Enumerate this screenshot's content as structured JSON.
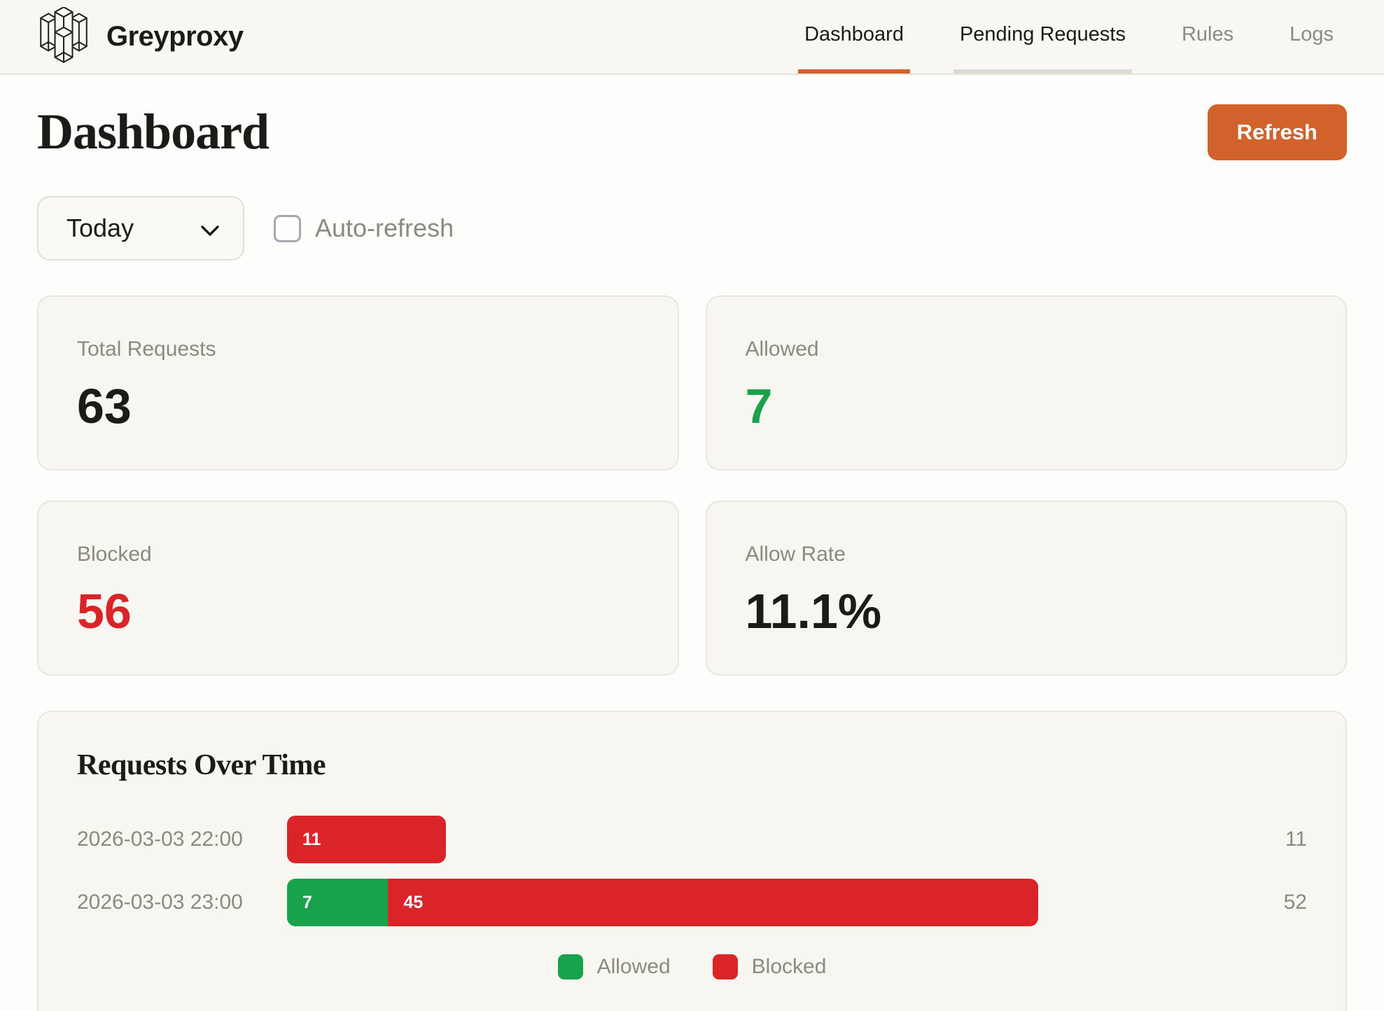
{
  "brand": {
    "name": "Greyproxy"
  },
  "nav": {
    "items": [
      {
        "label": "Dashboard",
        "state": "active"
      },
      {
        "label": "Pending Requests",
        "state": "highlighted"
      },
      {
        "label": "Rules",
        "state": "default"
      },
      {
        "label": "Logs",
        "state": "default"
      }
    ]
  },
  "page": {
    "title": "Dashboard"
  },
  "toolbar": {
    "refresh_label": "Refresh",
    "range_selected": "Today",
    "auto_refresh_label": "Auto-refresh",
    "auto_refresh_checked": false
  },
  "stats": [
    {
      "label": "Total Requests",
      "value": "63",
      "color": "#1c1b17"
    },
    {
      "label": "Allowed",
      "value": "7",
      "color": "#18a24b"
    },
    {
      "label": "Blocked",
      "value": "56",
      "color": "#da2428"
    },
    {
      "label": "Allow Rate",
      "value": "11.1%",
      "color": "#1c1b17"
    }
  ],
  "chart_data": {
    "type": "bar",
    "orientation": "horizontal",
    "stacked": true,
    "title": "Requests Over Time",
    "categories": [
      "2026-03-03 22:00",
      "2026-03-03 23:00"
    ],
    "series": [
      {
        "name": "Allowed",
        "color": "#18a24b",
        "values": [
          0,
          7
        ]
      },
      {
        "name": "Blocked",
        "color": "#da2428",
        "values": [
          11,
          45
        ]
      }
    ],
    "totals": [
      11,
      52
    ],
    "xmax": 63,
    "grid": false,
    "legend_position": "bottom"
  },
  "colors": {
    "accent_orange": "#d2622b",
    "green": "#18a24b",
    "red": "#da2428"
  }
}
